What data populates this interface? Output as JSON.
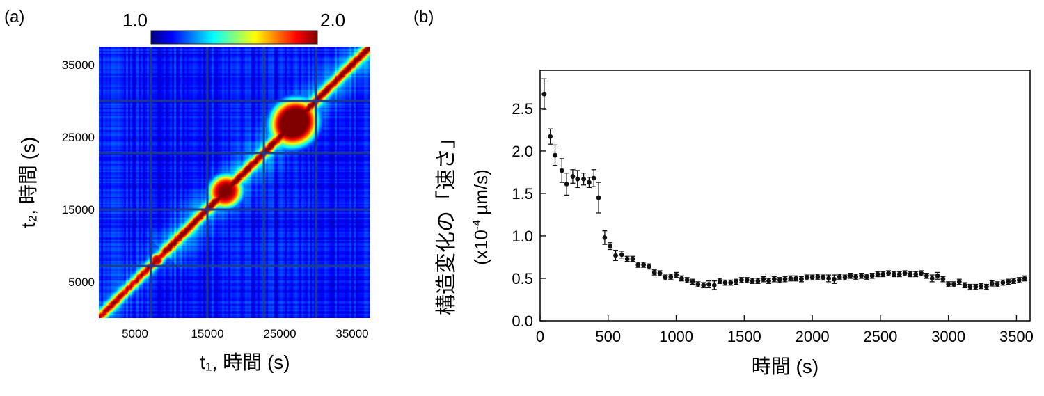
{
  "chart_data": [
    {
      "panel": "(a)",
      "type": "heatmap",
      "xlabel": "t₁, 時間 (s)",
      "ylabel": "t₂, 時間 (s)",
      "xticks": [
        5000,
        15000,
        25000,
        35000
      ],
      "yticks": [
        5000,
        15000,
        25000,
        35000
      ],
      "xlim": [
        0,
        37500
      ],
      "ylim": [
        0,
        37500
      ],
      "colorbar": {
        "min_label": "1.0",
        "max_label": "2.0",
        "range": [
          1.0,
          2.0
        ],
        "colormap": "jet"
      },
      "block_boundaries": [
        7200,
        15000,
        22800,
        30000
      ],
      "hotspots": [
        {
          "center": 27000,
          "radius": 3200,
          "value": 2.0
        },
        {
          "center": 17500,
          "radius": 2200,
          "value": 1.85
        },
        {
          "center": 8000,
          "radius": 900,
          "value": 1.9
        }
      ]
    },
    {
      "panel": "(b)",
      "type": "scatter",
      "xlabel": "時間 (s)",
      "ylabel": "構造変化の「速さ」",
      "ylabel_unit": "(x10",
      "ylabel_exp": "-4",
      "ylabel_unit_tail": " µm/s)",
      "xlim": [
        0,
        3600
      ],
      "ylim": [
        0,
        2.95
      ],
      "xticks": [
        0,
        500,
        1000,
        1500,
        2000,
        2500,
        3000,
        3500
      ],
      "yticks": [
        0.0,
        0.5,
        1.0,
        1.5,
        2.0,
        2.5
      ],
      "ytick_labels": [
        "0.0",
        "0.5",
        "1.0",
        "1.5",
        "2.0",
        "2.5"
      ],
      "x": [
        30,
        75,
        110,
        160,
        195,
        240,
        275,
        320,
        360,
        395,
        430,
        475,
        515,
        555,
        600,
        640,
        680,
        720,
        760,
        800,
        840,
        880,
        920,
        960,
        1000,
        1040,
        1080,
        1120,
        1160,
        1200,
        1240,
        1280,
        1320,
        1360,
        1400,
        1440,
        1480,
        1520,
        1560,
        1600,
        1640,
        1680,
        1720,
        1760,
        1800,
        1840,
        1880,
        1920,
        1960,
        2000,
        2040,
        2080,
        2120,
        2160,
        2200,
        2240,
        2280,
        2320,
        2360,
        2400,
        2440,
        2480,
        2520,
        2560,
        2600,
        2640,
        2680,
        2720,
        2760,
        2800,
        2840,
        2880,
        2920,
        2960,
        3000,
        3040,
        3080,
        3120,
        3160,
        3200,
        3240,
        3280,
        3320,
        3360,
        3400,
        3440,
        3480,
        3520,
        3560
      ],
      "y": [
        2.67,
        2.17,
        1.95,
        1.77,
        1.61,
        1.7,
        1.67,
        1.67,
        1.63,
        1.68,
        1.45,
        0.98,
        0.88,
        0.77,
        0.78,
        0.73,
        0.73,
        0.66,
        0.66,
        0.64,
        0.57,
        0.56,
        0.51,
        0.52,
        0.54,
        0.5,
        0.48,
        0.46,
        0.43,
        0.42,
        0.43,
        0.42,
        0.47,
        0.45,
        0.45,
        0.46,
        0.48,
        0.48,
        0.47,
        0.47,
        0.49,
        0.47,
        0.49,
        0.48,
        0.49,
        0.5,
        0.5,
        0.49,
        0.51,
        0.51,
        0.52,
        0.51,
        0.5,
        0.49,
        0.52,
        0.51,
        0.53,
        0.52,
        0.53,
        0.52,
        0.53,
        0.55,
        0.55,
        0.56,
        0.55,
        0.55,
        0.56,
        0.55,
        0.55,
        0.56,
        0.53,
        0.5,
        0.53,
        0.49,
        0.43,
        0.43,
        0.46,
        0.42,
        0.4,
        0.4,
        0.41,
        0.4,
        0.44,
        0.43,
        0.45,
        0.46,
        0.47,
        0.48,
        0.5
      ],
      "err": [
        0.18,
        0.09,
        0.12,
        0.14,
        0.13,
        0.08,
        0.1,
        0.07,
        0.06,
        0.1,
        0.18,
        0.08,
        0.04,
        0.06,
        0.04,
        0.03,
        0.03,
        0.03,
        0.03,
        0.03,
        0.03,
        0.03,
        0.03,
        0.03,
        0.03,
        0.03,
        0.03,
        0.03,
        0.03,
        0.03,
        0.04,
        0.05,
        0.03,
        0.03,
        0.03,
        0.03,
        0.03,
        0.03,
        0.03,
        0.03,
        0.03,
        0.03,
        0.03,
        0.03,
        0.03,
        0.03,
        0.03,
        0.03,
        0.03,
        0.03,
        0.03,
        0.03,
        0.04,
        0.05,
        0.03,
        0.03,
        0.03,
        0.03,
        0.03,
        0.03,
        0.03,
        0.03,
        0.03,
        0.03,
        0.03,
        0.03,
        0.03,
        0.03,
        0.03,
        0.03,
        0.03,
        0.04,
        0.04,
        0.03,
        0.03,
        0.03,
        0.03,
        0.03,
        0.03,
        0.03,
        0.03,
        0.03,
        0.03,
        0.03,
        0.03,
        0.03,
        0.03,
        0.03,
        0.03
      ]
    }
  ]
}
